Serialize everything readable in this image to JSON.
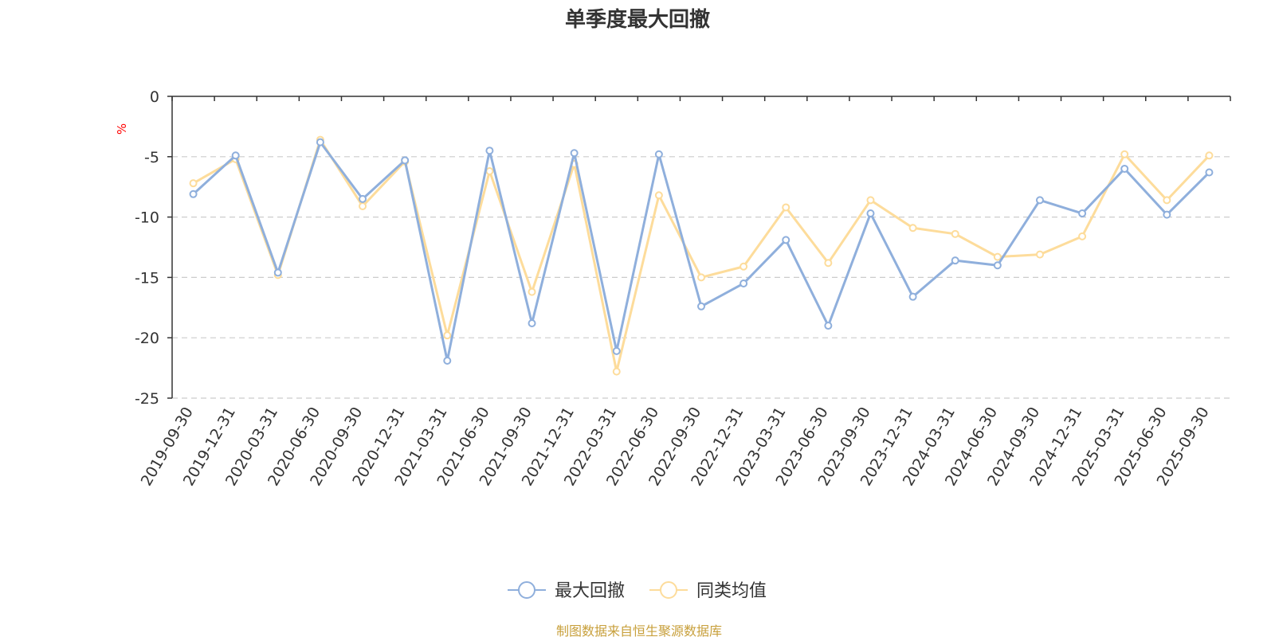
{
  "chart_data": {
    "type": "line",
    "title": "单季度最大回撤",
    "ylabel": "%",
    "ylim": [
      -25,
      0
    ],
    "yticks": [
      "0",
      "-5",
      "-10",
      "-15",
      "-20",
      "-25"
    ],
    "ytick_values": [
      0,
      -5,
      -10,
      -15,
      -20,
      -25
    ],
    "grid": true,
    "legend_position": "bottom-center",
    "categories": [
      "2019-09-30",
      "2019-12-31",
      "2020-03-31",
      "2020-06-30",
      "2020-09-30",
      "2020-12-31",
      "2021-03-31",
      "2021-06-30",
      "2021-09-30",
      "2021-12-31",
      "2022-03-31",
      "2022-06-30",
      "2022-09-30",
      "2022-12-31",
      "2023-03-31",
      "2023-06-30",
      "2023-09-30",
      "2023-12-31",
      "2024-03-31",
      "2024-06-30",
      "2024-09-30",
      "2024-12-31",
      "2025-03-31",
      "2025-06-30",
      "2025-09-30"
    ],
    "series": [
      {
        "name": "最大回撤",
        "color": "#8fafdc",
        "values": [
          -8.1,
          -4.9,
          -14.6,
          -3.8,
          -8.5,
          -5.3,
          -21.9,
          -4.5,
          -18.8,
          -4.7,
          -21.1,
          -4.8,
          -17.4,
          -15.5,
          -11.9,
          -19.0,
          -9.7,
          -16.6,
          -13.6,
          -14.0,
          -8.6,
          -9.7,
          -6.0,
          -9.8,
          -6.3
        ]
      },
      {
        "name": "同类均值",
        "color": "#fddc9b",
        "values": [
          -7.2,
          -5.2,
          -14.8,
          -3.6,
          -9.1,
          -5.4,
          -19.8,
          -6.2,
          -16.2,
          -5.6,
          -22.8,
          -8.2,
          -15.0,
          -14.1,
          -9.2,
          -13.8,
          -8.6,
          -10.9,
          -11.4,
          -13.3,
          -13.1,
          -11.6,
          -4.8,
          -8.6,
          -4.9
        ]
      }
    ],
    "source_note": "制图数据来自恒生聚源数据库",
    "colors": {
      "axis": "#333333",
      "grid": "#cccccc",
      "unit": "#ff0000",
      "source": "#c8a03c"
    }
  }
}
